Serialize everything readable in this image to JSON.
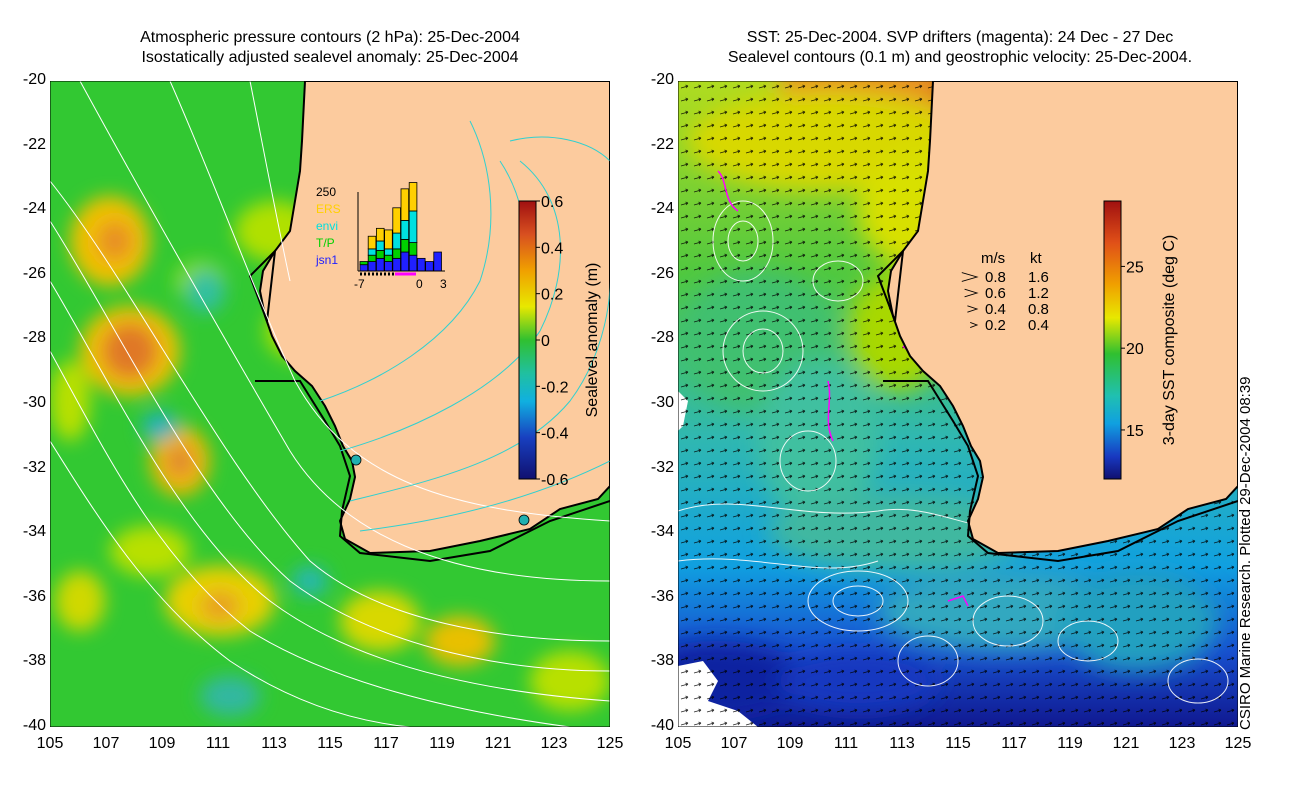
{
  "left_panel": {
    "title_line1": "Atmospheric pressure contours (2 hPa): 25-Dec-2004",
    "title_line2": "Isostatically adjusted sealevel anomaly: 25-Dec-2004",
    "colorbar": {
      "label": "Sealevel anomaly (m)",
      "ticks": [
        "0.6",
        "0.4",
        "0.2",
        "0",
        "-0.2",
        "-0.4",
        "-0.6"
      ],
      "range": [
        -0.6,
        0.6
      ]
    },
    "inset": {
      "ytick": "250",
      "xticks": [
        "-7",
        "0",
        "3"
      ],
      "legend": [
        {
          "label": "ERS",
          "color": "#ffd000"
        },
        {
          "label": "envi",
          "color": "#00e0e0"
        },
        {
          "label": "T/P",
          "color": "#00d000"
        },
        {
          "label": "jsn1",
          "color": "#2020ff"
        }
      ],
      "bars": [
        {
          "day": -7,
          "jsn1": 20,
          "tp": 10,
          "envi": 0,
          "ers": 0
        },
        {
          "day": -6,
          "jsn1": 30,
          "tp": 20,
          "envi": 20,
          "ers": 40
        },
        {
          "day": -5,
          "jsn1": 40,
          "tp": 25,
          "envi": 30,
          "ers": 40
        },
        {
          "day": -4,
          "jsn1": 30,
          "tp": 20,
          "envi": 20,
          "ers": 60
        },
        {
          "day": -3,
          "jsn1": 40,
          "tp": 30,
          "envi": 50,
          "ers": 80
        },
        {
          "day": -2,
          "jsn1": 60,
          "tp": 40,
          "envi": 60,
          "ers": 100
        },
        {
          "day": -1,
          "jsn1": 50,
          "tp": 40,
          "envi": 100,
          "ers": 90
        },
        {
          "day": 0,
          "jsn1": 40,
          "tp": 0,
          "envi": 0,
          "ers": 0
        },
        {
          "day": 1,
          "jsn1": 30,
          "tp": 0,
          "envi": 0,
          "ers": 0
        },
        {
          "day": 2,
          "jsn1": 60,
          "tp": 0,
          "envi": 0,
          "ers": 0
        }
      ]
    }
  },
  "right_panel": {
    "title_line1": "SST: 25-Dec-2004. SVP drifters (magenta): 24 Dec - 27 Dec",
    "title_line2": "Sealevel contours (0.1 m) and geostrophic velocity: 25-Dec-2004.",
    "colorbar": {
      "label": "3-day SST composite (deg C)",
      "ticks": [
        "25",
        "20",
        "15"
      ],
      "range": [
        12,
        29
      ]
    },
    "velocity_key": {
      "header_ms": "m/s",
      "header_kt": "kt",
      "rows": [
        {
          "ms": "0.8",
          "kt": "1.6"
        },
        {
          "ms": "0.6",
          "kt": "1.2"
        },
        {
          "ms": "0.4",
          "kt": "0.8"
        },
        {
          "ms": "0.2",
          "kt": "0.4"
        }
      ]
    }
  },
  "axes": {
    "lat_labels": [
      "-20",
      "-22",
      "-24",
      "-26",
      "-28",
      "-30",
      "-32",
      "-34",
      "-36",
      "-38",
      "-40"
    ],
    "lon_labels": [
      "105",
      "107",
      "109",
      "111",
      "113",
      "115",
      "117",
      "119",
      "121",
      "123",
      "125"
    ],
    "lat_range": [
      -40,
      -20
    ],
    "lon_range": [
      105,
      125
    ]
  },
  "credit": "CSIRO Marine Research. Plotted 29-Dec-2004 08:39",
  "colors": {
    "land": "#fccb9e",
    "coast": "#000000",
    "sla_zero": "#2fc42f",
    "drifters": "#ff00ff"
  }
}
